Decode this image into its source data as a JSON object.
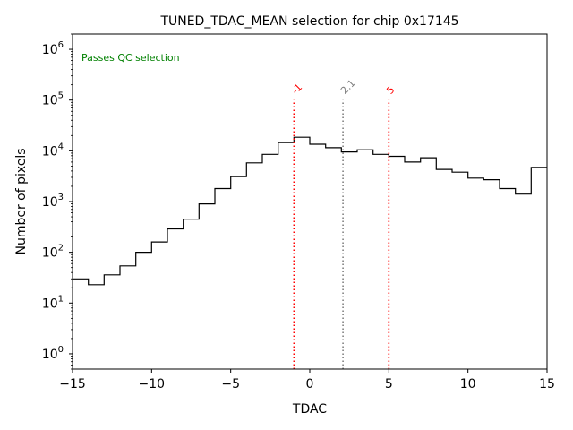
{
  "chart_data": {
    "type": "histogram",
    "title": "TUNED_TDAC_MEAN selection for chip 0x17145",
    "xlabel": "TDAC",
    "ylabel": "Number of pixels",
    "xlim": [
      -15,
      15
    ],
    "ylim": [
      0.5,
      2000000
    ],
    "yscale": "log",
    "xticks": [
      -15,
      -10,
      -5,
      0,
      5,
      10,
      15
    ],
    "xtick_labels": [
      "−15",
      "−10",
      "−5",
      "0",
      "5",
      "10",
      "15"
    ],
    "yticks": [
      {
        "value": 1,
        "base": "10",
        "exp": "0"
      },
      {
        "value": 10,
        "base": "10",
        "exp": "1"
      },
      {
        "value": 100,
        "base": "10",
        "exp": "2"
      },
      {
        "value": 1000,
        "base": "10",
        "exp": "3"
      },
      {
        "value": 10000,
        "base": "10",
        "exp": "4"
      },
      {
        "value": 100000,
        "base": "10",
        "exp": "5"
      },
      {
        "value": 1000000,
        "base": "10",
        "exp": "6"
      }
    ],
    "bin_edges": [
      -15,
      -14,
      -13,
      -12,
      -11,
      -10,
      -9,
      -8,
      -7,
      -6,
      -5,
      -4,
      -3,
      -2,
      -1,
      0,
      1,
      2,
      3,
      4,
      5,
      6,
      7,
      8,
      9,
      10,
      11,
      12,
      13,
      14,
      15
    ],
    "counts": [
      30,
      23,
      36,
      54,
      100,
      160,
      290,
      450,
      900,
      1800,
      3100,
      5800,
      8500,
      14500,
      18500,
      13500,
      11500,
      9500,
      10500,
      8500,
      7800,
      6000,
      7300,
      4300,
      3800,
      2900,
      2700,
      1800,
      1400,
      4700
    ],
    "series_color": "#000000",
    "annotation": {
      "text": "Passes QC selection",
      "color": "#008000",
      "position": "top-left"
    },
    "vlines": [
      {
        "x": -1,
        "label": "-1",
        "color": "#ff0000",
        "style": "dotted",
        "top": 100000
      },
      {
        "x": 2.1,
        "label": "2.1",
        "color": "#808080",
        "style": "dotted",
        "top": 100000
      },
      {
        "x": 5,
        "label": "5",
        "color": "#ff0000",
        "style": "dotted",
        "top": 100000
      }
    ]
  }
}
